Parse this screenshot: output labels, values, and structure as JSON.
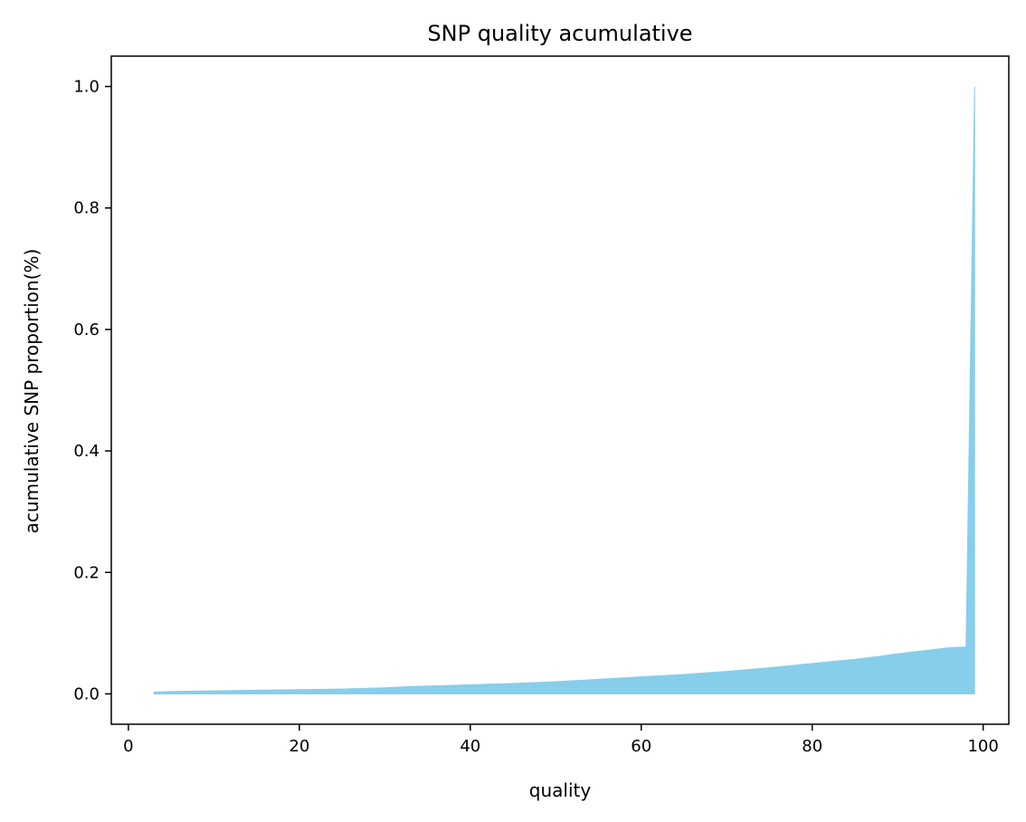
{
  "chart_data": {
    "type": "area",
    "title": "SNP quality acumulative",
    "xlabel": "quality",
    "ylabel": "acumulative SNP proportion(%)",
    "xlim": [
      -2,
      103
    ],
    "ylim": [
      -0.05,
      1.05
    ],
    "x_ticks": [
      0,
      20,
      40,
      60,
      80,
      100
    ],
    "y_ticks": [
      0.0,
      0.2,
      0.4,
      0.6,
      0.8,
      1.0
    ],
    "x_tick_labels": [
      "0",
      "20",
      "40",
      "60",
      "80",
      "100"
    ],
    "y_tick_labels": [
      "0.0",
      "0.2",
      "0.4",
      "0.6",
      "0.8",
      "1.0"
    ],
    "fill_color": "#87ceeb",
    "grid": false,
    "series": [
      {
        "x": [
          3,
          5,
          10,
          15,
          20,
          25,
          30,
          33,
          40,
          45,
          50,
          55,
          60,
          65,
          70,
          75,
          80,
          85,
          88,
          90,
          93,
          96,
          98,
          99,
          99
        ],
        "y": [
          0.003,
          0.004,
          0.005,
          0.006,
          0.007,
          0.008,
          0.01,
          0.012,
          0.015,
          0.017,
          0.02,
          0.024,
          0.028,
          0.032,
          0.037,
          0.043,
          0.05,
          0.057,
          0.062,
          0.066,
          0.071,
          0.076,
          0.077,
          1.0,
          0.0
        ]
      }
    ]
  }
}
